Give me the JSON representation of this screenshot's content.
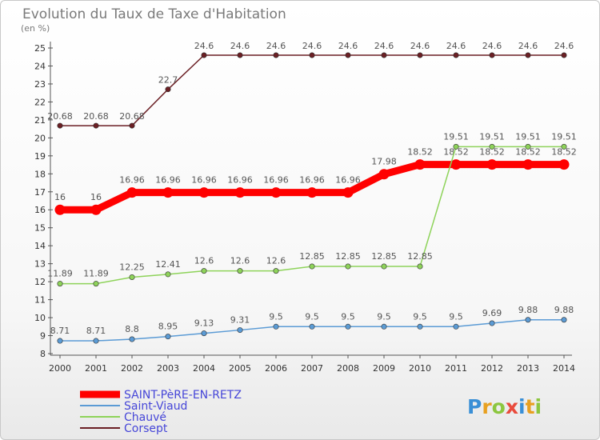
{
  "chart_data": {
    "type": "line",
    "title": "Evolution du Taux de Taxe d'Habitation",
    "subtitle": "(en %)",
    "x": [
      "2000",
      "2001",
      "2002",
      "2003",
      "2004",
      "2005",
      "2006",
      "2007",
      "2008",
      "2009",
      "2010",
      "2011",
      "2012",
      "2013",
      "2014"
    ],
    "ylim": [
      8,
      25
    ],
    "yticks": [
      8,
      9,
      10,
      11,
      12,
      13,
      14,
      15,
      16,
      17,
      18,
      19,
      20,
      21,
      22,
      23,
      24,
      25
    ],
    "grid": false,
    "legend_position": "bottom-left",
    "series": [
      {
        "name": "Corsept",
        "color": "#6b1f24",
        "values": [
          20.68,
          20.68,
          20.68,
          22.7,
          24.6,
          24.6,
          24.6,
          24.6,
          24.6,
          24.6,
          24.6,
          24.6,
          24.6,
          24.6,
          24.6
        ],
        "labels": [
          "20.68",
          "20.68",
          "20.68",
          "22.7",
          "24.6",
          "24.6",
          "24.6",
          "24.6",
          "24.6",
          "24.6",
          "24.6",
          "24.6",
          "24.6",
          "24.6",
          "24.6"
        ]
      },
      {
        "name": "SAINT-PèRE-EN-RETZ",
        "color": "#ff0000",
        "values": [
          16,
          16,
          16.96,
          16.96,
          16.96,
          16.96,
          16.96,
          16.96,
          16.96,
          17.98,
          18.52,
          18.52,
          18.52,
          18.52,
          18.52
        ],
        "labels": [
          "16",
          "16",
          "16.96",
          "16.96",
          "16.96",
          "16.96",
          "16.96",
          "16.96",
          "16.96",
          "17.98",
          "18.52",
          "18.52",
          "18.52",
          "18.52",
          "18.52"
        ]
      },
      {
        "name": "Chauvé",
        "color": "#8ed35a",
        "values": [
          11.89,
          11.89,
          12.25,
          12.41,
          12.6,
          12.6,
          12.6,
          12.85,
          12.85,
          12.85,
          12.85,
          19.51,
          19.51,
          19.51,
          19.51
        ],
        "labels": [
          "11.89",
          "11.89",
          "12.25",
          "12.41",
          "12.6",
          "12.6",
          "12.6",
          "12.85",
          "12.85",
          "12.85",
          "12.85",
          "19.51",
          "19.51",
          "19.51",
          "19.51"
        ]
      },
      {
        "name": "Saint-Viaud",
        "color": "#5b9bd5",
        "values": [
          8.71,
          8.71,
          8.8,
          8.95,
          9.13,
          9.31,
          9.5,
          9.5,
          9.5,
          9.5,
          9.5,
          9.5,
          9.69,
          9.88,
          9.88
        ],
        "labels": [
          "8.71",
          "8.71",
          "8.8",
          "8.95",
          "9.13",
          "9.31",
          "9.5",
          "9.5",
          "9.5",
          "9.5",
          "9.5",
          "9.5",
          "9.69",
          "9.88",
          "9.88"
        ]
      }
    ],
    "legend": [
      "SAINT-PèRE-EN-RETZ",
      "Saint-Viaud",
      "Chauvé",
      "Corsept"
    ]
  },
  "logo": {
    "letters": [
      "P",
      "r",
      "o",
      "x",
      "i",
      "t",
      "i"
    ],
    "colors": [
      "#3a8fd6",
      "#e8a020",
      "#8cc63f",
      "#e94b3c",
      "#3a8fd6",
      "#e8a020",
      "#8cc63f"
    ]
  }
}
